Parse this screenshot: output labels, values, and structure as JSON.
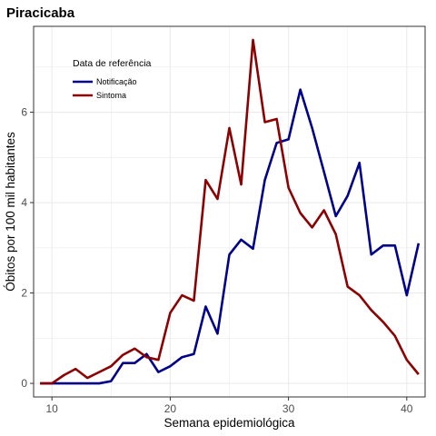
{
  "chart_data": {
    "type": "line",
    "title": "Piracicaba",
    "xlabel": "Semana epidemiológica",
    "ylabel": "Óbitos por 100 mil habitantes",
    "xlim": [
      8.45,
      41.55
    ],
    "ylim": [
      -0.3,
      7.9
    ],
    "xticks": [
      10,
      20,
      30,
      40
    ],
    "yticks": [
      0,
      2,
      4,
      6
    ],
    "grid": true,
    "legend": {
      "title": "Data de referência",
      "placement": "top-left inside"
    },
    "series": [
      {
        "name": "Notificação",
        "color": "#00008b",
        "x": [
          9,
          10,
          11,
          12,
          13,
          14,
          15,
          16,
          17,
          18,
          19,
          20,
          21,
          22,
          23,
          24,
          25,
          26,
          27,
          28,
          29,
          30,
          31,
          32,
          33,
          34,
          35,
          36,
          37,
          38,
          39,
          40,
          41
        ],
        "y": [
          0,
          0,
          0,
          0,
          0,
          0,
          0.05,
          0.45,
          0.45,
          0.65,
          0.25,
          0.38,
          0.58,
          0.65,
          1.7,
          1.1,
          2.85,
          3.18,
          2.98,
          4.5,
          5.32,
          5.4,
          6.5,
          5.65,
          4.68,
          3.7,
          4.15,
          4.88,
          2.85,
          3.05,
          3.05,
          1.95,
          3.1
        ]
      },
      {
        "name": "Sintoma",
        "color": "#8b0000",
        "x": [
          9,
          10,
          11,
          12,
          13,
          14,
          15,
          16,
          17,
          18,
          19,
          20,
          21,
          22,
          23,
          24,
          25,
          26,
          27,
          28,
          29,
          30,
          31,
          32,
          33,
          34,
          35,
          36,
          37,
          38,
          39,
          40,
          41
        ],
        "y": [
          0,
          0,
          0.18,
          0.32,
          0.12,
          0.25,
          0.38,
          0.63,
          0.77,
          0.58,
          0.52,
          1.56,
          1.95,
          1.83,
          4.5,
          4.08,
          5.65,
          4.4,
          7.6,
          5.78,
          5.85,
          4.33,
          3.77,
          3.45,
          3.83,
          3.3,
          2.14,
          1.95,
          1.62,
          1.36,
          1.05,
          0.52,
          0.2
        ]
      }
    ]
  }
}
